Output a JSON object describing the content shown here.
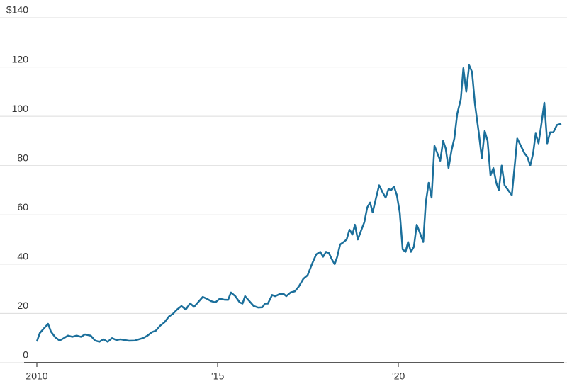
{
  "chart_data": {
    "type": "line",
    "color": "#1b6f9b",
    "grid": true,
    "xlim": [
      2010,
      2024.51
    ],
    "ylim": [
      0,
      140
    ],
    "xticks": [
      2010,
      {
        "value": 2015,
        "label": "’15"
      },
      {
        "value": 2020,
        "label": "’20"
      }
    ],
    "yticks": [
      0,
      20,
      40,
      60,
      80,
      100,
      120,
      {
        "value": 140,
        "label": "$140"
      }
    ],
    "x": [
      2010.0,
      2010.08,
      2010.2,
      2010.31,
      2010.39,
      2010.51,
      2010.63,
      2010.75,
      2010.86,
      2010.98,
      2011.1,
      2011.22,
      2011.33,
      2011.49,
      2011.61,
      2011.73,
      2011.84,
      2011.96,
      2012.08,
      2012.2,
      2012.31,
      2012.43,
      2012.55,
      2012.71,
      2012.82,
      2012.94,
      2013.06,
      2013.18,
      2013.29,
      2013.41,
      2013.53,
      2013.65,
      2013.76,
      2013.88,
      2014.0,
      2014.12,
      2014.24,
      2014.35,
      2014.47,
      2014.59,
      2014.71,
      2014.82,
      2014.94,
      2015.06,
      2015.18,
      2015.29,
      2015.37,
      2015.49,
      2015.61,
      2015.69,
      2015.76,
      2015.88,
      2016.0,
      2016.12,
      2016.24,
      2016.31,
      2016.39,
      2016.51,
      2016.59,
      2016.71,
      2016.82,
      2016.9,
      2017.02,
      2017.14,
      2017.25,
      2017.37,
      2017.49,
      2017.61,
      2017.73,
      2017.84,
      2017.92,
      2018.0,
      2018.08,
      2018.16,
      2018.24,
      2018.31,
      2018.39,
      2018.49,
      2018.57,
      2018.65,
      2018.73,
      2018.8,
      2018.88,
      2018.98,
      2019.06,
      2019.14,
      2019.22,
      2019.29,
      2019.37,
      2019.47,
      2019.57,
      2019.65,
      2019.73,
      2019.8,
      2019.88,
      2019.96,
      2020.04,
      2020.12,
      2020.2,
      2020.27,
      2020.35,
      2020.43,
      2020.51,
      2020.59,
      2020.69,
      2020.76,
      2020.84,
      2020.92,
      2021.0,
      2021.08,
      2021.16,
      2021.24,
      2021.31,
      2021.39,
      2021.47,
      2021.55,
      2021.63,
      2021.73,
      2021.8,
      2021.88,
      2021.96,
      2022.04,
      2022.12,
      2022.22,
      2022.31,
      2022.39,
      2022.47,
      2022.55,
      2022.63,
      2022.71,
      2022.78,
      2022.86,
      2022.94,
      2023.04,
      2023.14,
      2023.22,
      2023.29,
      2023.39,
      2023.49,
      2023.57,
      2023.65,
      2023.73,
      2023.8,
      2023.88,
      2023.96,
      2024.04,
      2024.12,
      2024.2,
      2024.29,
      2024.39,
      2024.51
    ],
    "values": [
      8.6,
      12,
      14,
      15.8,
      12.6,
      10.3,
      9,
      10,
      11,
      10.5,
      11,
      10.5,
      11.5,
      11,
      9,
      8.5,
      9.5,
      8.5,
      10,
      9.2,
      9.5,
      9.2,
      8.9,
      9,
      9.5,
      10,
      11,
      12.4,
      13,
      15,
      16.4,
      18.7,
      19.8,
      21.6,
      23,
      21.6,
      24.1,
      22.7,
      24.7,
      26.7,
      25.9,
      25,
      24.5,
      26,
      25.6,
      25.5,
      28.5,
      27,
      24.5,
      24,
      27,
      25,
      23,
      22.4,
      22.5,
      24,
      24,
      27.5,
      27,
      27.8,
      28,
      27,
      28.5,
      29,
      31,
      34,
      35.5,
      40,
      44,
      45,
      43,
      45,
      44.5,
      42,
      40,
      43,
      48,
      49,
      50,
      54,
      52,
      56,
      50,
      54,
      57,
      63,
      65,
      61,
      66,
      72,
      69,
      67,
      70.5,
      70,
      71.5,
      68,
      61,
      46,
      45,
      49,
      45,
      47,
      56,
      53,
      49,
      65,
      73,
      67,
      88,
      85,
      82,
      90,
      87,
      79,
      86,
      91,
      101,
      107,
      119.5,
      110,
      120.7,
      118,
      105,
      94,
      83,
      94,
      90,
      76,
      79,
      73,
      70,
      80,
      72,
      70,
      68,
      80,
      91,
      88,
      85,
      83.5,
      80,
      85,
      93,
      89,
      97,
      105.5,
      89,
      93.5,
      93.5,
      96.5,
      97
    ]
  }
}
